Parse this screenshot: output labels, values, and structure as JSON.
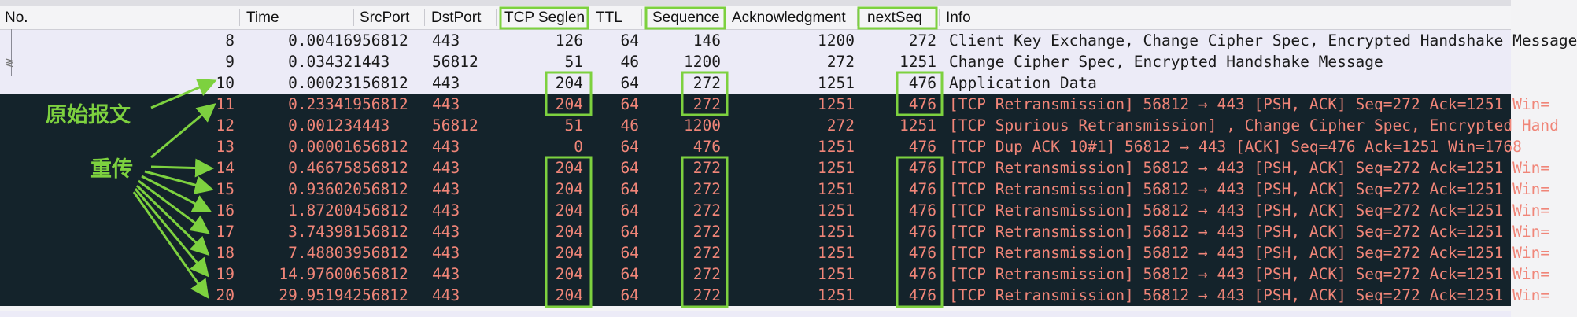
{
  "columns": {
    "no": "No.",
    "time": "Time",
    "srcport": "SrcPort",
    "dstport": "DstPort",
    "seglen": "TCP Seglen",
    "ttl": "TTL",
    "sequence": "Sequence",
    "ack": "Acknowledgment",
    "nextseq": "nextSeq",
    "info": "Info"
  },
  "rows": [
    {
      "no": "8",
      "time": "0.004169",
      "src": "56812",
      "dst": "443",
      "seglen": "126",
      "ttl": "64",
      "seq": "146",
      "ack": "1200",
      "next": "272",
      "info": "Client Key Exchange, Change Cipher Spec, Encrypted Handshake Message",
      "style": "light"
    },
    {
      "no": "9",
      "time": "0.034321",
      "src": "443",
      "dst": "56812",
      "seglen": "51",
      "ttl": "46",
      "seq": "1200",
      "ack": "272",
      "next": "1251",
      "info": "Change Cipher Spec, Encrypted Handshake Message",
      "style": "light"
    },
    {
      "no": "10",
      "time": "0.000231",
      "src": "56812",
      "dst": "443",
      "seglen": "204",
      "ttl": "64",
      "seq": "272",
      "ack": "1251",
      "next": "476",
      "info": "Application Data",
      "style": "light"
    },
    {
      "no": "11",
      "time": "0.233419",
      "src": "56812",
      "dst": "443",
      "seglen": "204",
      "ttl": "64",
      "seq": "272",
      "ack": "1251",
      "next": "476",
      "info": "[TCP Retransmission] 56812 → 443 [PSH, ACK] Seq=272 Ack=1251 Win=",
      "style": "dark"
    },
    {
      "no": "12",
      "time": "0.001234",
      "src": "443",
      "dst": "56812",
      "seglen": "51",
      "ttl": "46",
      "seq": "1200",
      "ack": "272",
      "next": "1251",
      "info": "[TCP Spurious Retransmission] , Change Cipher Spec, Encrypted Hand",
      "style": "dark"
    },
    {
      "no": "13",
      "time": "0.000016",
      "src": "56812",
      "dst": "443",
      "seglen": "0",
      "ttl": "64",
      "seq": "476",
      "ack": "1251",
      "next": "476",
      "info": "[TCP Dup ACK 10#1] 56812 → 443 [ACK] Seq=476 Ack=1251 Win=1768",
      "style": "dark"
    },
    {
      "no": "14",
      "time": "0.466758",
      "src": "56812",
      "dst": "443",
      "seglen": "204",
      "ttl": "64",
      "seq": "272",
      "ack": "1251",
      "next": "476",
      "info": "[TCP Retransmission] 56812 → 443 [PSH, ACK] Seq=272 Ack=1251 Win=",
      "style": "dark"
    },
    {
      "no": "15",
      "time": "0.936020",
      "src": "56812",
      "dst": "443",
      "seglen": "204",
      "ttl": "64",
      "seq": "272",
      "ack": "1251",
      "next": "476",
      "info": "[TCP Retransmission] 56812 → 443 [PSH, ACK] Seq=272 Ack=1251 Win=",
      "style": "dark"
    },
    {
      "no": "16",
      "time": "1.872004",
      "src": "56812",
      "dst": "443",
      "seglen": "204",
      "ttl": "64",
      "seq": "272",
      "ack": "1251",
      "next": "476",
      "info": "[TCP Retransmission] 56812 → 443 [PSH, ACK] Seq=272 Ack=1251 Win=",
      "style": "dark"
    },
    {
      "no": "17",
      "time": "3.743981",
      "src": "56812",
      "dst": "443",
      "seglen": "204",
      "ttl": "64",
      "seq": "272",
      "ack": "1251",
      "next": "476",
      "info": "[TCP Retransmission] 56812 → 443 [PSH, ACK] Seq=272 Ack=1251 Win=",
      "style": "dark"
    },
    {
      "no": "18",
      "time": "7.488039",
      "src": "56812",
      "dst": "443",
      "seglen": "204",
      "ttl": "64",
      "seq": "272",
      "ack": "1251",
      "next": "476",
      "info": "[TCP Retransmission] 56812 → 443 [PSH, ACK] Seq=272 Ack=1251 Win=",
      "style": "dark"
    },
    {
      "no": "19",
      "time": "14.976006",
      "src": "56812",
      "dst": "443",
      "seglen": "204",
      "ttl": "64",
      "seq": "272",
      "ack": "1251",
      "next": "476",
      "info": "[TCP Retransmission] 56812 → 443 [PSH, ACK] Seq=272 Ack=1251 Win=",
      "style": "dark"
    },
    {
      "no": "20",
      "time": "29.951942",
      "src": "56812",
      "dst": "443",
      "seglen": "204",
      "ttl": "64",
      "seq": "272",
      "ack": "1251",
      "next": "476",
      "info": "[TCP Retransmission] 56812 → 443 [PSH, ACK] Seq=272 Ack=1251 Win=",
      "style": "dark"
    }
  ],
  "annotations": {
    "original_label": "原始报文",
    "retransmit_label": "重传"
  },
  "colors": {
    "annotation": "#7dd13f",
    "dark_row_bg": "#14232b",
    "dark_row_text": "#f08578",
    "light_row_bg": "#ecebf7"
  }
}
